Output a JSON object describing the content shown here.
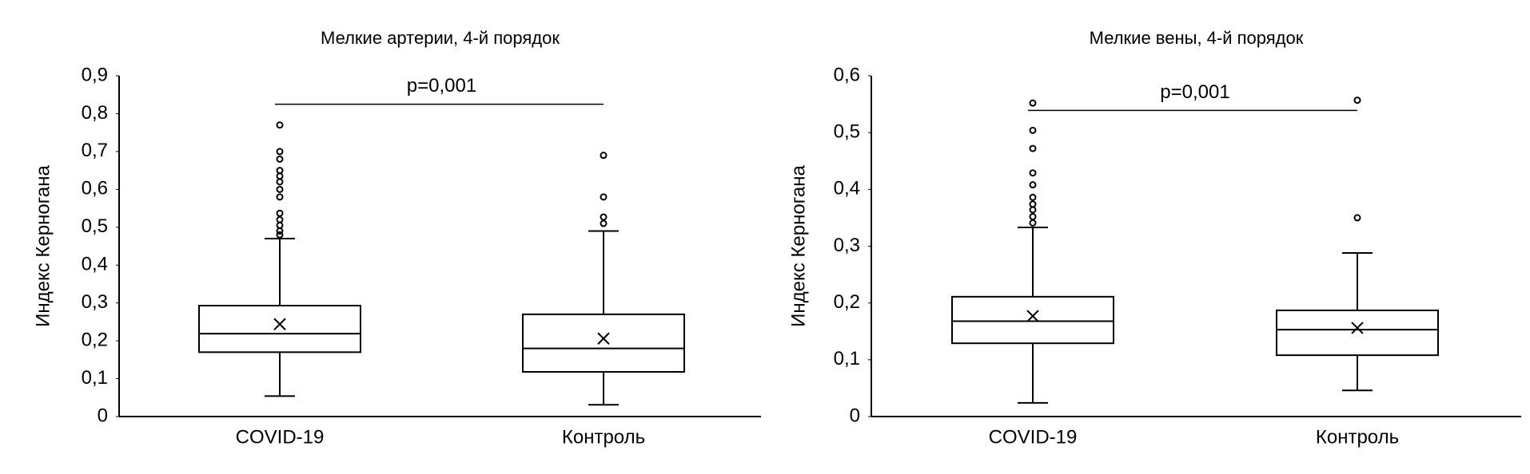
{
  "chart_data": [
    {
      "type": "box",
      "title": "Мелкие артерии, 4-й порядок",
      "y_label": "Индекс Керногана",
      "categories": [
        "COVID-19",
        "Контроль"
      ],
      "boxes": [
        {
          "min": 0.054,
          "q1": 0.17,
          "median": 0.219,
          "q3": 0.293,
          "max": 0.47,
          "mean": 0.244,
          "outliers": [
            0.77,
            0.7,
            0.68,
            0.65,
            0.635,
            0.62,
            0.6,
            0.58,
            0.537,
            0.52,
            0.505,
            0.49,
            0.48
          ]
        },
        {
          "min": 0.031,
          "q1": 0.118,
          "median": 0.18,
          "q3": 0.27,
          "max": 0.49,
          "mean": 0.206,
          "outliers": [
            0.69,
            0.58,
            0.527,
            0.51
          ]
        }
      ],
      "significance": {
        "label": "p=0,001",
        "y": 0.825
      },
      "ylim": [
        0,
        0.9
      ],
      "yticks": [
        0,
        {
          "value": 0.1,
          "label": "0,1"
        },
        {
          "value": 0.2,
          "label": "0,2"
        },
        {
          "value": 0.3,
          "label": "0,3"
        },
        {
          "value": 0.4,
          "label": "0,4"
        },
        {
          "value": 0.5,
          "label": "0,5"
        },
        {
          "value": 0.6,
          "label": "0,6"
        },
        {
          "value": 0.7,
          "label": "0,7"
        },
        {
          "value": 0.8,
          "label": "0,8"
        },
        {
          "value": 0.9,
          "label": "0,9"
        }
      ],
      "color": "#000000"
    },
    {
      "type": "box",
      "title": "Мелкие вены, 4-й порядок",
      "y_label": "Индекс Керногана",
      "categories": [
        "COVID-19",
        "Контроль"
      ],
      "boxes": [
        {
          "min": 0.024,
          "q1": 0.129,
          "median": 0.168,
          "q3": 0.211,
          "max": 0.333,
          "mean": 0.177,
          "outliers": [
            0.552,
            0.504,
            0.472,
            0.429,
            0.408,
            0.386,
            0.374,
            0.364,
            0.352,
            0.341
          ]
        },
        {
          "min": 0.046,
          "q1": 0.108,
          "median": 0.153,
          "q3": 0.187,
          "max": 0.288,
          "mean": 0.156,
          "outliers": [
            0.557,
            0.35
          ]
        }
      ],
      "significance": {
        "label": "p=0,001",
        "y": 0.539
      },
      "ylim": [
        0,
        0.6
      ],
      "yticks": [
        0,
        {
          "value": 0.1,
          "label": "0,1"
        },
        {
          "value": 0.2,
          "label": "0,2"
        },
        {
          "value": 0.3,
          "label": "0,3"
        },
        {
          "value": 0.4,
          "label": "0,4"
        },
        {
          "value": 0.5,
          "label": "0,5"
        },
        {
          "value": 0.6,
          "label": "0,6"
        }
      ],
      "color": "#000000"
    }
  ]
}
